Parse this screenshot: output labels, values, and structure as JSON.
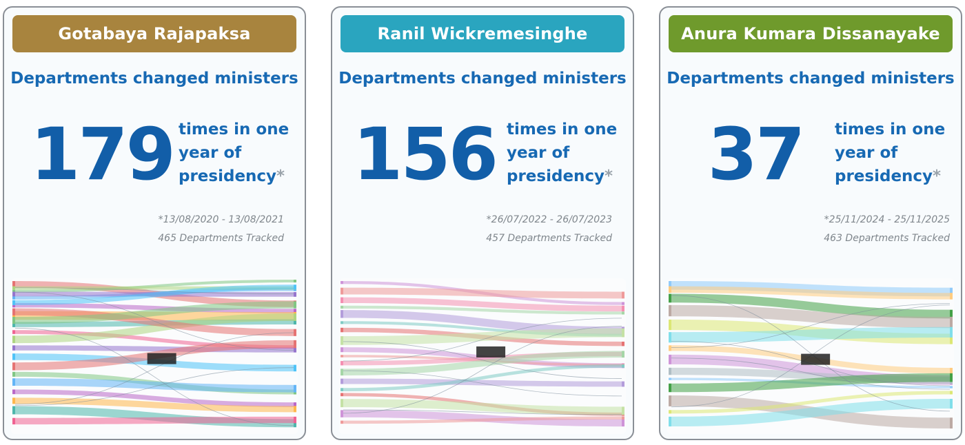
{
  "cards": [
    {
      "name": "Gotabaya Rajapaksa",
      "banner_color": "#a8843e",
      "subtitle": "Departments changed ministers",
      "count": "179",
      "stat_line1": "times in one",
      "stat_line2": "year of",
      "stat_line3": "presidency",
      "asterisk": "*",
      "date_range": "*13/08/2020 - 13/08/2021",
      "tracked": "465 Departments Tracked"
    },
    {
      "name": "Ranil Wickremesinghe",
      "banner_color": "#2aa5bf",
      "subtitle": "Departments changed ministers",
      "count": "156",
      "stat_line1": "times in one",
      "stat_line2": "year of",
      "stat_line3": "presidency",
      "asterisk": "*",
      "date_range": "*26/07/2022 - 26/07/2023",
      "tracked": "457 Departments Tracked"
    },
    {
      "name": "Anura Kumara Dissanayake",
      "banner_color": "#6f9a2c",
      "subtitle": "Departments changed ministers",
      "count": "37",
      "stat_line1": "times in one",
      "stat_line2": "year of",
      "stat_line3": "presidency",
      "asterisk": "*",
      "date_range": "*25/11/2024 - 25/11/2025",
      "tracked": "463 Departments Tracked"
    }
  ],
  "sankey_palettes": [
    [
      "#e57373",
      "#81c784",
      "#64b5f6",
      "#ba68c8",
      "#ffb74d",
      "#4db6ac",
      "#f06292",
      "#aed581",
      "#9575cd",
      "#4fc3f7"
    ],
    [
      "#ce93d8",
      "#ef9a9a",
      "#f48fb1",
      "#a5d6a7",
      "#b39ddb",
      "#80cbc4",
      "#e57373",
      "#c5e1a5"
    ],
    [
      "#90caf9",
      "#43a047",
      "#bcaaa4",
      "#dce775",
      "#80deea",
      "#ffcc80",
      "#ce93d8",
      "#b0bec5"
    ]
  ]
}
